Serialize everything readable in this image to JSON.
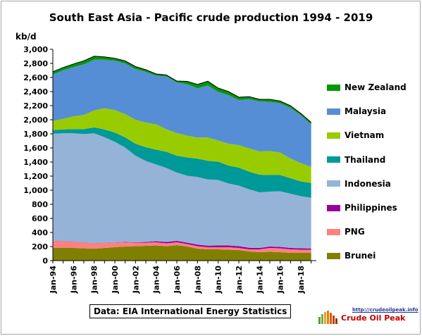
{
  "chart_data": {
    "type": "area",
    "stacked": true,
    "title": "South East Asia - Pacific crude production 1994 - 2019",
    "ylabel": "kb/d",
    "xlabel": "",
    "ylim": [
      0,
      3000
    ],
    "yticks": [
      0,
      200,
      400,
      600,
      800,
      1000,
      1200,
      1400,
      1600,
      1800,
      2000,
      2200,
      2400,
      2600,
      2800,
      3000
    ],
    "ytick_labels": [
      "0",
      "200",
      "400",
      "600",
      "800",
      "1,000",
      "1,200",
      "1,400",
      "1,600",
      "1,800",
      "2,000",
      "2,200",
      "2,400",
      "2,600",
      "2,800",
      "3,000"
    ],
    "xticks": [
      1994,
      1996,
      1998,
      2000,
      2002,
      2004,
      2006,
      2008,
      2010,
      2012,
      2014,
      2016,
      2018
    ],
    "xtick_labels": [
      "Jan-94",
      "Jan-96",
      "Jan-98",
      "Jan-00",
      "Jan-02",
      "Jan-04",
      "Jan-06",
      "Jan-08",
      "Jan-10",
      "Jan-12",
      "Jan-14",
      "Jan-16",
      "Jan-18"
    ],
    "x": [
      1994,
      1995,
      1996,
      1997,
      1998,
      1999,
      2000,
      2001,
      2002,
      2003,
      2004,
      2005,
      2006,
      2007,
      2008,
      2009,
      2010,
      2011,
      2012,
      2013,
      2014,
      2015,
      2016,
      2017,
      2018,
      2019
    ],
    "grid": false,
    "legend_position": "right",
    "series": [
      {
        "name": "Brunei",
        "color": "#808000",
        "values": [
          180,
          180,
          180,
          175,
          170,
          180,
          190,
          200,
          205,
          210,
          215,
          205,
          220,
          200,
          170,
          160,
          160,
          155,
          150,
          130,
          120,
          125,
          120,
          110,
          110,
          110
        ]
      },
      {
        "name": "PNG",
        "color": "#ff8080",
        "values": [
          100,
          95,
          85,
          80,
          75,
          70,
          65,
          60,
          50,
          45,
          45,
          40,
          40,
          35,
          35,
          30,
          30,
          35,
          30,
          30,
          40,
          55,
          55,
          50,
          45,
          45
        ]
      },
      {
        "name": "Philippines",
        "color": "#990099",
        "values": [
          2,
          2,
          2,
          2,
          2,
          2,
          2,
          5,
          5,
          10,
          15,
          20,
          20,
          20,
          22,
          22,
          25,
          25,
          25,
          22,
          20,
          20,
          20,
          20,
          20,
          18
        ]
      },
      {
        "name": "Indonesia",
        "color": "#95b3d7",
        "values": [
          1520,
          1530,
          1540,
          1540,
          1560,
          1500,
          1430,
          1340,
          1230,
          1150,
          1090,
          1050,
          970,
          950,
          960,
          940,
          930,
          880,
          860,
          830,
          790,
          780,
          790,
          770,
          740,
          720
        ]
      },
      {
        "name": "Thailand",
        "color": "#009999",
        "values": [
          50,
          55,
          60,
          70,
          85,
          110,
          130,
          145,
          170,
          195,
          210,
          230,
          240,
          260,
          260,
          265,
          260,
          255,
          255,
          250,
          250,
          235,
          230,
          220,
          210,
          210
        ]
      },
      {
        "name": "Vietnam",
        "color": "#99cc00",
        "values": [
          130,
          150,
          180,
          200,
          240,
          300,
          320,
          330,
          340,
          350,
          360,
          320,
          320,
          310,
          300,
          330,
          300,
          310,
          320,
          330,
          330,
          340,
          320,
          280,
          260,
          230
        ]
      },
      {
        "name": "Malaysia",
        "color": "#558ed5",
        "values": [
          660,
          690,
          700,
          720,
          720,
          690,
          700,
          720,
          720,
          720,
          690,
          750,
          720,
          730,
          700,
          740,
          690,
          690,
          640,
          700,
          710,
          700,
          700,
          720,
          680,
          600
        ]
      },
      {
        "name": "New Zealand",
        "color": "#009900",
        "values": [
          40,
          40,
          45,
          50,
          50,
          40,
          35,
          35,
          35,
          30,
          25,
          20,
          20,
          40,
          55,
          60,
          55,
          50,
          40,
          35,
          30,
          35,
          30,
          30,
          25,
          30
        ]
      }
    ],
    "legend_order": [
      "New Zealand",
      "Malaysia",
      "Vietnam",
      "Thailand",
      "Indonesia",
      "Philippines",
      "PNG",
      "Brunei"
    ]
  },
  "source_note": "Data: EIA International Energy Statistics",
  "logo": {
    "url": "http://crudeoilpeak.info",
    "name": "Crude Oil Peak"
  }
}
